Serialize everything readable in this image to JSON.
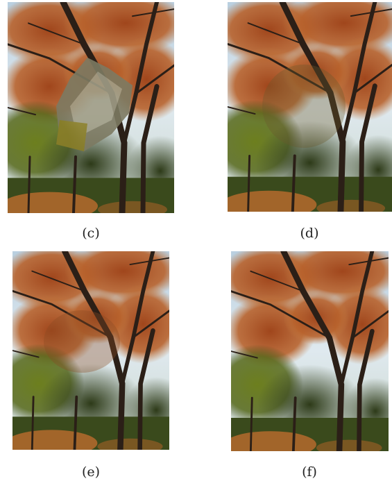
{
  "panels": [
    {
      "label": "(c)"
    },
    {
      "label": "(d)"
    },
    {
      "label": "(e)"
    },
    {
      "label": "(f)"
    }
  ]
}
